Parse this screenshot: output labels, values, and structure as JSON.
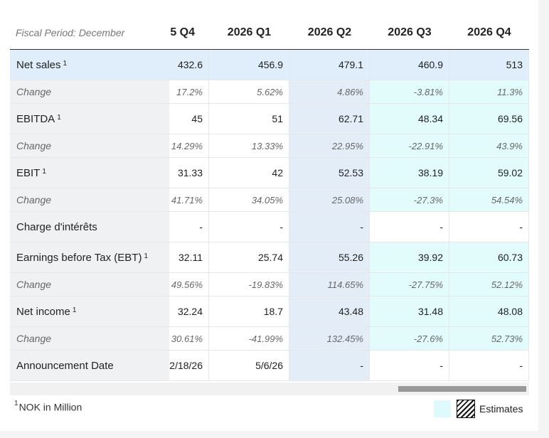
{
  "header": {
    "period_label": "Fiscal Period: December",
    "columns": [
      "5 Q4",
      "2026 Q1",
      "2026 Q2",
      "2026 Q3",
      "2026 Q4"
    ]
  },
  "rows": [
    {
      "label": "Net sales",
      "footnote": "1",
      "values": [
        "432.6",
        "456.9",
        "479.1",
        "460.9",
        "513"
      ]
    },
    {
      "label": "Change",
      "values": [
        "17.2%",
        "5.62%",
        "4.86%",
        "-3.81%",
        "11.3%"
      ]
    },
    {
      "label": "EBITDA",
      "footnote": "1",
      "values": [
        "45",
        "51",
        "62.71",
        "48.34",
        "69.56"
      ]
    },
    {
      "label": "Change",
      "values": [
        "14.29%",
        "13.33%",
        "22.95%",
        "-22.91%",
        "43.9%"
      ]
    },
    {
      "label": "EBIT",
      "footnote": "1",
      "values": [
        "31.33",
        "42",
        "52.53",
        "38.19",
        "59.02"
      ]
    },
    {
      "label": "Change",
      "values": [
        "41.71%",
        "34.05%",
        "25.08%",
        "-27.3%",
        "54.54%"
      ]
    },
    {
      "label": "Charge d'intérêts",
      "values": [
        "-",
        "-",
        "-",
        "-",
        "-"
      ]
    },
    {
      "label": "Earnings before Tax (EBT)",
      "footnote": "1",
      "values": [
        "32.11",
        "25.74",
        "55.26",
        "39.92",
        "60.73"
      ]
    },
    {
      "label": "Change",
      "values": [
        "49.56%",
        "-19.83%",
        "114.65%",
        "-27.75%",
        "52.12%"
      ]
    },
    {
      "label": "Net income",
      "footnote": "1",
      "values": [
        "32.24",
        "18.7",
        "43.48",
        "31.48",
        "48.08"
      ]
    },
    {
      "label": "Change",
      "values": [
        "30.61%",
        "-41.99%",
        "132.45%",
        "-27.6%",
        "52.73%"
      ]
    },
    {
      "label": "Announcement Date",
      "values": [
        "2/18/26",
        "5/6/26",
        "-",
        "-",
        "-"
      ]
    }
  ],
  "footer": {
    "footnote_marker": "1",
    "footnote_text": "NOK in Million",
    "legend_label": "Estimates"
  },
  "colors": {
    "highlight_row": "#dfeefa",
    "current_col": "#e3edf7",
    "estimate": "#e2fbfc",
    "label_col": "#f0f1f3"
  }
}
